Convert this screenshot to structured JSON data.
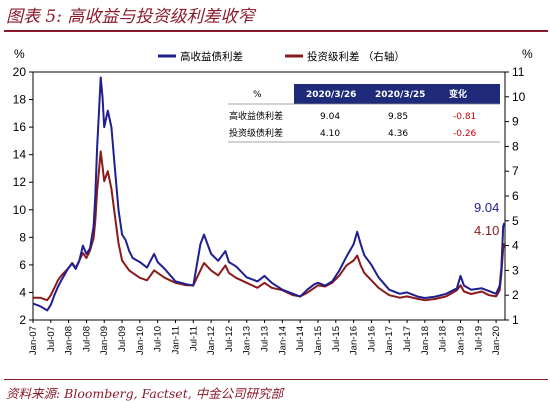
{
  "header": {
    "title": "图表 5:  高收益与投资级利差收窄"
  },
  "footer": {
    "source": "资料来源:  Bloomberg,  Factset,  中金公司研究部"
  },
  "colors": {
    "high_yield": "#1f1f8f",
    "investment_grade": "#8b1a1a",
    "title_accent": "#8b1a2b",
    "table_header_bg": "#1f2a7a",
    "negative_change": "#cc0000"
  },
  "chart_data": {
    "type": "line",
    "left_axis": {
      "unit_label": "%",
      "ylim": [
        2,
        20
      ],
      "ticks": [
        2,
        4,
        6,
        8,
        10,
        12,
        14,
        16,
        18,
        20
      ]
    },
    "right_axis": {
      "unit_label": "%",
      "ylim": [
        1,
        11
      ],
      "ticks": [
        1,
        2,
        3,
        4,
        5,
        6,
        7,
        8,
        9,
        10,
        11
      ]
    },
    "x_ticks": [
      "Jan-07",
      "Jul-07",
      "Jan-08",
      "Jul-08",
      "Jan-09",
      "Jul-09",
      "Jan-10",
      "Jul-10",
      "Jan-11",
      "Jul-11",
      "Jan-12",
      "Jul-12",
      "Jan-13",
      "Jul-13",
      "Jan-14",
      "Jul-14",
      "Jan-15",
      "Jul-15",
      "Jan-16",
      "Jul-16",
      "Jan-17",
      "Jul-17",
      "Jan-18",
      "Jul-18",
      "Jan-19",
      "Jul-19",
      "Jan-20"
    ],
    "grid": false,
    "legend_position": "top-center",
    "series": [
      {
        "name": "高收益债利差",
        "axis": "left",
        "x": [
          2007.0,
          2007.2,
          2007.4,
          2007.5,
          2007.6,
          2007.7,
          2007.8,
          2008.0,
          2008.1,
          2008.2,
          2008.3,
          2008.4,
          2008.5,
          2008.6,
          2008.7,
          2008.75,
          2008.8,
          2008.85,
          2008.9,
          2008.95,
          2009.0,
          2009.1,
          2009.2,
          2009.3,
          2009.4,
          2009.5,
          2009.6,
          2009.7,
          2009.8,
          2010.0,
          2010.2,
          2010.4,
          2010.5,
          2010.7,
          2011.0,
          2011.3,
          2011.5,
          2011.7,
          2011.8,
          2012.0,
          2012.2,
          2012.4,
          2012.5,
          2012.7,
          2013.0,
          2013.3,
          2013.5,
          2013.7,
          2014.0,
          2014.3,
          2014.5,
          2014.7,
          2014.9,
          2015.0,
          2015.2,
          2015.4,
          2015.6,
          2015.8,
          2016.0,
          2016.1,
          2016.2,
          2016.3,
          2016.5,
          2016.7,
          2017.0,
          2017.3,
          2017.5,
          2017.8,
          2018.0,
          2018.3,
          2018.6,
          2018.9,
          2019.0,
          2019.1,
          2019.3,
          2019.6,
          2019.8,
          2020.0,
          2020.1,
          2020.15,
          2020.2,
          2020.23
        ],
        "values": [
          3.2,
          3.0,
          2.7,
          3.1,
          3.8,
          4.4,
          4.9,
          5.8,
          6.1,
          5.7,
          6.3,
          7.4,
          6.8,
          7.2,
          8.8,
          11.0,
          14.5,
          17.0,
          19.6,
          18.2,
          16.0,
          17.2,
          16.0,
          13.0,
          10.0,
          8.2,
          7.8,
          7.0,
          6.5,
          6.2,
          5.8,
          6.8,
          6.2,
          5.7,
          4.8,
          4.6,
          4.5,
          7.5,
          8.2,
          6.8,
          6.3,
          7.0,
          6.2,
          5.9,
          5.1,
          4.8,
          5.2,
          4.7,
          4.2,
          3.9,
          3.7,
          4.2,
          4.6,
          4.7,
          4.5,
          4.8,
          5.6,
          6.6,
          7.5,
          8.4,
          7.5,
          6.7,
          6.0,
          5.1,
          4.2,
          3.9,
          4.0,
          3.7,
          3.6,
          3.7,
          3.9,
          4.3,
          5.2,
          4.5,
          4.2,
          4.3,
          4.1,
          3.9,
          4.5,
          5.8,
          8.8,
          9.04
        ]
      },
      {
        "name": "投资级利差 （右轴）",
        "axis": "right",
        "x": [
          2007.0,
          2007.2,
          2007.4,
          2007.5,
          2007.6,
          2007.7,
          2007.8,
          2008.0,
          2008.1,
          2008.2,
          2008.3,
          2008.4,
          2008.5,
          2008.6,
          2008.7,
          2008.75,
          2008.8,
          2008.85,
          2008.9,
          2008.95,
          2009.0,
          2009.1,
          2009.2,
          2009.3,
          2009.4,
          2009.5,
          2009.6,
          2009.7,
          2009.8,
          2010.0,
          2010.2,
          2010.4,
          2010.5,
          2010.7,
          2011.0,
          2011.3,
          2011.5,
          2011.7,
          2011.8,
          2012.0,
          2012.2,
          2012.4,
          2012.5,
          2012.7,
          2013.0,
          2013.3,
          2013.5,
          2013.7,
          2014.0,
          2014.3,
          2014.5,
          2014.7,
          2014.9,
          2015.0,
          2015.2,
          2015.4,
          2015.6,
          2015.8,
          2016.0,
          2016.1,
          2016.2,
          2016.3,
          2016.5,
          2016.7,
          2017.0,
          2017.3,
          2017.5,
          2017.8,
          2018.0,
          2018.3,
          2018.6,
          2018.9,
          2019.0,
          2019.1,
          2019.3,
          2019.6,
          2019.8,
          2020.0,
          2020.1,
          2020.15,
          2020.2,
          2020.23
        ],
        "values": [
          1.9,
          1.9,
          1.8,
          2.0,
          2.3,
          2.6,
          2.8,
          3.1,
          3.3,
          3.1,
          3.4,
          3.7,
          3.5,
          3.8,
          4.3,
          5.0,
          6.2,
          7.0,
          7.8,
          7.2,
          6.6,
          7.0,
          6.3,
          5.2,
          4.1,
          3.4,
          3.2,
          3.0,
          2.9,
          2.7,
          2.6,
          3.0,
          2.9,
          2.7,
          2.5,
          2.4,
          2.4,
          3.0,
          3.3,
          3.0,
          2.8,
          3.2,
          2.9,
          2.7,
          2.5,
          2.3,
          2.5,
          2.3,
          2.2,
          2.0,
          1.95,
          2.1,
          2.3,
          2.4,
          2.35,
          2.5,
          2.8,
          3.2,
          3.4,
          3.6,
          3.2,
          2.9,
          2.6,
          2.3,
          2.0,
          1.9,
          1.95,
          1.85,
          1.8,
          1.85,
          1.95,
          2.2,
          2.4,
          2.15,
          2.05,
          2.15,
          2.0,
          1.95,
          2.2,
          2.9,
          3.9,
          4.1
        ]
      }
    ],
    "end_labels": [
      {
        "series": 0,
        "text": "9.04"
      },
      {
        "series": 1,
        "text": "4.10"
      }
    ]
  },
  "table": {
    "headers": [
      "%",
      "2020/3/26",
      "2020/3/25",
      "变化"
    ],
    "rows": [
      [
        "高收益债利差",
        "9.04",
        "9.85",
        "-0.81"
      ],
      [
        "投资级债利差",
        "4.10",
        "4.36",
        "-0.26"
      ]
    ]
  }
}
